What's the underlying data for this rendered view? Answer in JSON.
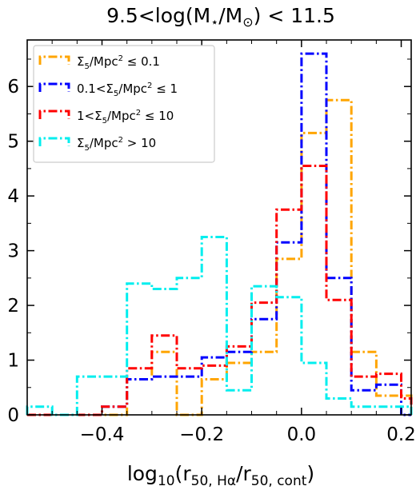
{
  "chart_data": {
    "type": "step-histogram",
    "title": "9.5<log(M⋆/M⊙) < 11.5",
    "xlabel": "log10(r50, Hα/r50, cont)",
    "ylabel": "",
    "xlim": [
      -0.55,
      0.22
    ],
    "ylim": [
      0,
      6.85
    ],
    "xticks": [
      -0.4,
      -0.2,
      0.0,
      0.2
    ],
    "xtick_labels": [
      "−0.4",
      "−0.2",
      "0.0",
      "0.2"
    ],
    "yticks": [
      0,
      1,
      2,
      3,
      4,
      5,
      6
    ],
    "ytick_labels": [
      "0",
      "1",
      "2",
      "3",
      "4",
      "5",
      "6"
    ],
    "bin_edges": [
      -0.55,
      -0.5,
      -0.45,
      -0.4,
      -0.35,
      -0.3,
      -0.25,
      -0.2,
      -0.15,
      -0.1,
      -0.05,
      0.0,
      0.05,
      0.1,
      0.15,
      0.2,
      0.22
    ],
    "legend_position": "upper-left",
    "grid": false,
    "series": [
      {
        "name": "Σ5/Mpc2 ≤ 0.1",
        "name_parts": [
          "Σ",
          "5",
          "/Mpc",
          "2",
          " ≤ 0.1"
        ],
        "color": "#ffa500",
        "values": [
          0,
          0,
          0,
          0,
          0.65,
          1.15,
          0,
          0.65,
          0.95,
          1.15,
          2.85,
          5.15,
          5.75,
          1.15,
          0.35,
          0.35
        ]
      },
      {
        "name": "0.1<Σ5/Mpc2 ≤ 1",
        "name_parts": [
          "0.1<Σ",
          "5",
          "/Mpc",
          "2",
          " ≤ 1"
        ],
        "color": "#0000ff",
        "values": [
          0,
          0,
          0,
          0.15,
          0.65,
          0.7,
          0.7,
          1.05,
          1.15,
          1.75,
          3.15,
          6.6,
          2.5,
          0.45,
          0.55,
          0
        ]
      },
      {
        "name": "1<Σ5/Mpc2 ≤ 10",
        "name_parts": [
          "1<Σ",
          "5",
          "/Mpc",
          "2",
          " ≤ 10"
        ],
        "color": "#ff0000",
        "values": [
          0,
          0,
          0,
          0.15,
          0.85,
          1.45,
          0.85,
          0.9,
          1.25,
          2.05,
          3.75,
          4.55,
          2.1,
          0.7,
          0.75,
          0.3
        ]
      },
      {
        "name": "Σ5/Mpc2 > 10",
        "name_parts": [
          "Σ",
          "5",
          "/Mpc",
          "2",
          " > 10"
        ],
        "color": "#00eeee",
        "values": [
          0.15,
          0,
          0.7,
          0.7,
          2.4,
          2.3,
          2.5,
          3.25,
          0.45,
          2.35,
          2.15,
          0.95,
          0.3,
          0.15,
          0.15,
          0.15
        ]
      }
    ]
  }
}
